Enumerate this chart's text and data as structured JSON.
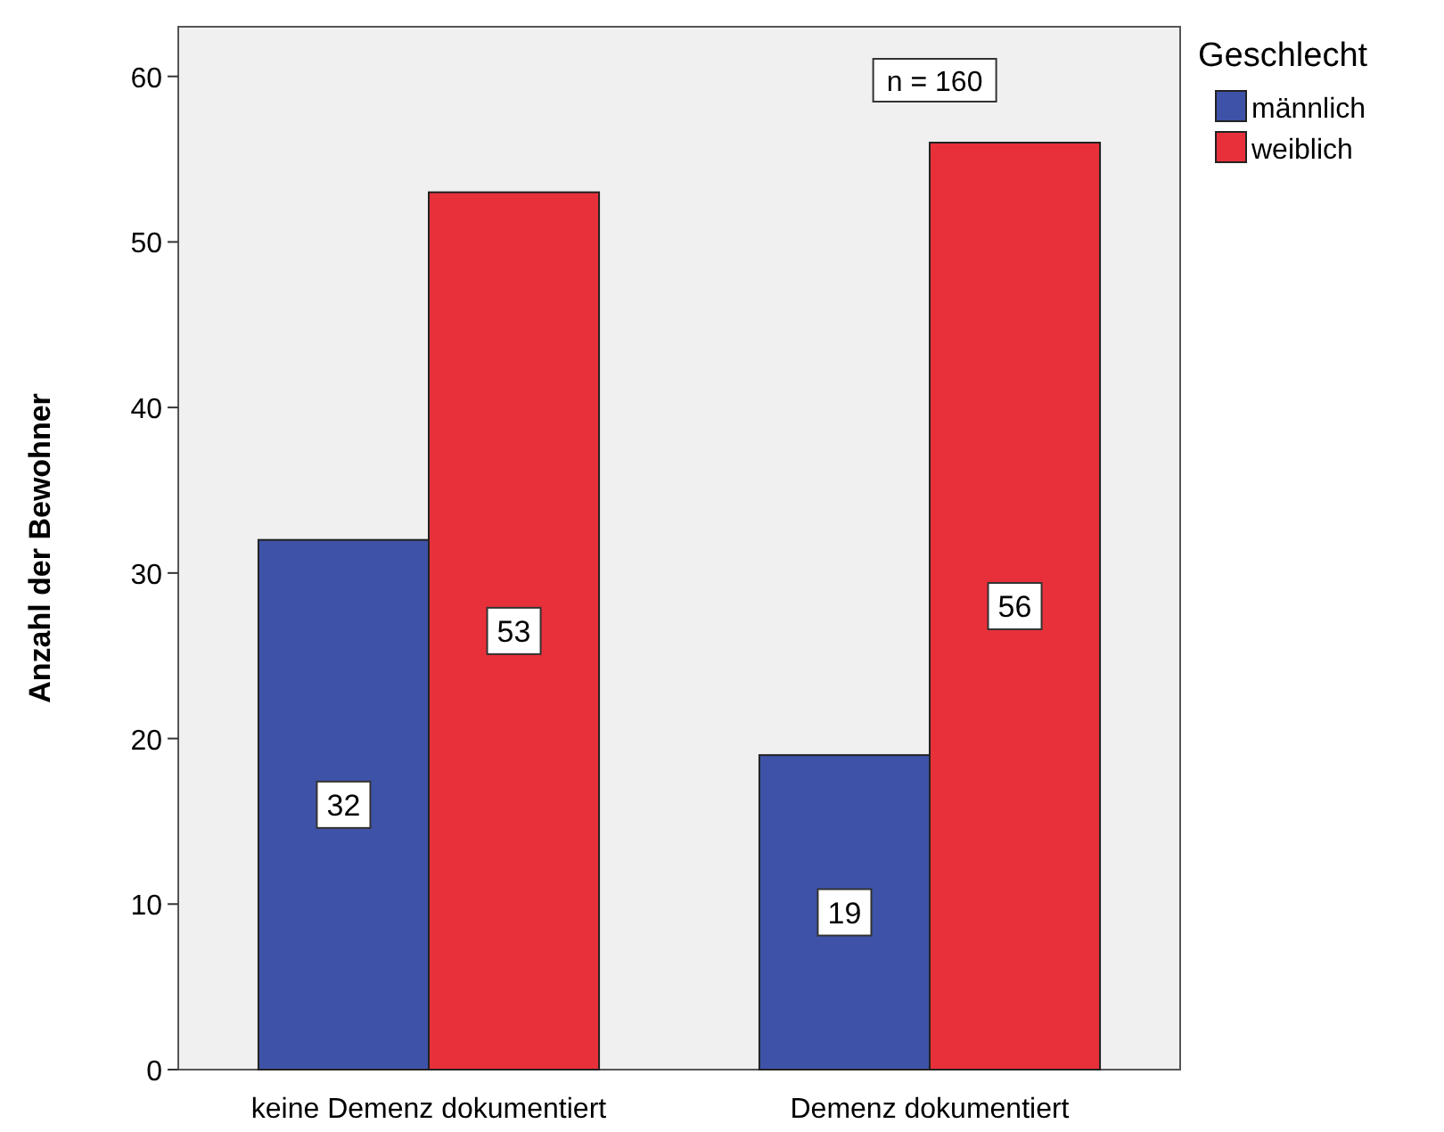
{
  "chart_data": {
    "type": "bar",
    "ylabel": "Anzahl der Bewohner",
    "legend_title": "Geschlecht",
    "categories": [
      "keine Demenz dokumentiert",
      "Demenz dokumentiert"
    ],
    "series": [
      {
        "name": "männlich",
        "color": "#3e52a8",
        "values": [
          32,
          19
        ]
      },
      {
        "name": "weiblich",
        "color": "#e8303a",
        "values": [
          53,
          56
        ]
      }
    ],
    "ylim": [
      0,
      63
    ],
    "yticks": [
      0,
      10,
      20,
      30,
      40,
      50,
      60
    ],
    "grid": false,
    "legend": "top right",
    "data_labels": true,
    "annotations": [
      "n = 160"
    ]
  }
}
